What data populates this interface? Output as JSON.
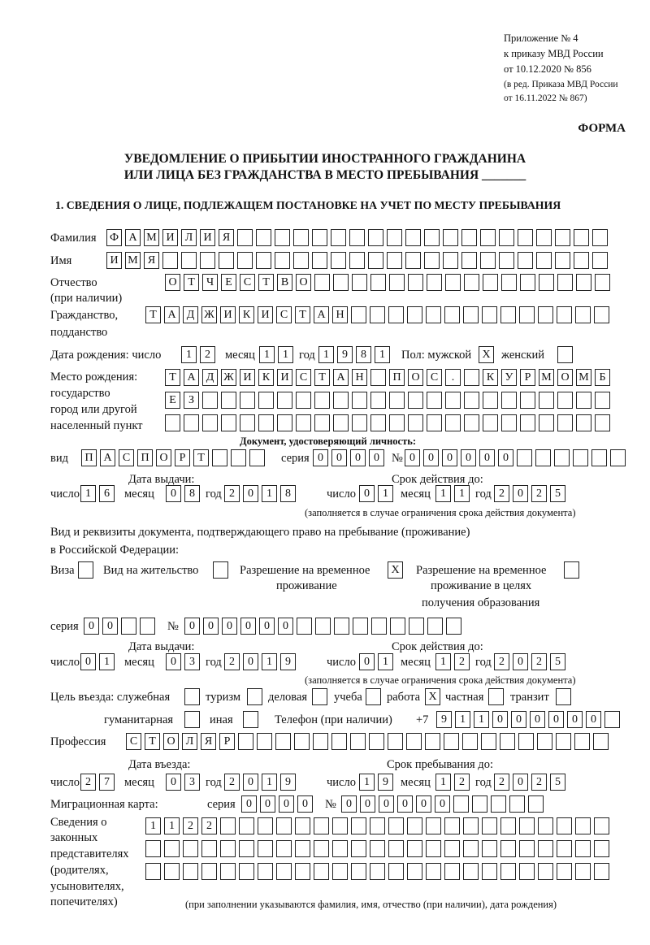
{
  "header": {
    "line1": "Приложение № 4",
    "line2": "к приказу МВД России",
    "line3": "от 10.12.2020 № 856",
    "line4": "(в ред. Приказа МВД России",
    "line5": "от 16.11.2022 № 867)",
    "forma": "ФОРМА",
    "title1": "УВЕДОМЛЕНИЕ О ПРИБЫТИИ ИНОСТРАННОГО ГРАЖДАНИНА",
    "title2": "ИЛИ ЛИЦА БЕЗ ГРАЖДАНСТВА В МЕСТО ПРЕБЫВАНИЯ _______",
    "section1": "1. СВЕДЕНИЯ О ЛИЦЕ, ПОДЛЕЖАЩЕМ ПОСТАНОВКЕ НА УЧЕТ ПО МЕСТУ ПРЕБЫВАНИЯ"
  },
  "labels": {
    "surname": "Фамилия",
    "name": "Имя",
    "patronymic1": "Отчество",
    "patronymic2": "(при наличии)",
    "citizenship1": "Гражданство,",
    "citizenship2": "подданство",
    "birth_date": "Дата рождения:  число",
    "month": "месяц",
    "year": "год",
    "day": "число",
    "sex": "Пол: мужской",
    "female": "женский",
    "birthplace1": "Место рождения:",
    "birthplace2": "государство",
    "birthplace3": "город или другой",
    "birthplace4": "населенный пункт",
    "id_doc": "Документ, удостоверяющий личность:",
    "kind": "вид",
    "series": "серия",
    "number": "№",
    "issue_date": "Дата выдачи:",
    "valid_until": "Срок действия до:",
    "validity_note": "(заполняется в случае ограничения срока действия документа)",
    "right_doc1": "Вид и реквизиты документа, подтверждающего право на пребывание (проживание)",
    "right_doc2": "в Российской Федерации:",
    "visa": "Виза",
    "residence": "Вид на жительство",
    "trp1": "Разрешение на временное",
    "trp2": "проживание",
    "trpe1": "Разрешение на временное",
    "trpe2": "проживание в целях",
    "trpe3": "получения образования",
    "purpose": "Цель въезда: служебная",
    "tourism": "туризм",
    "business": "деловая",
    "study": "учеба",
    "work": "работа",
    "private": "частная",
    "transit": "транзит",
    "humanitarian": "гуманитарная",
    "other": "иная",
    "phone": "Телефон (при наличии)",
    "phone_prefix": "+7",
    "profession": "Профессия",
    "entry_date": "Дата въезда:",
    "stay_until": "Срок пребывания до:",
    "migration_card": "Миграционная карта:",
    "reps1": "Сведения о",
    "reps2": "законных",
    "reps3": "представителях",
    "reps4": "(родителях,",
    "reps5": "усыновителях,",
    "reps6": "попечителях)",
    "reps_note": "(при заполнении указываются фамилия, имя, отчество (при наличии), дата рождения)"
  },
  "person": {
    "surname": "ФАМИЛИЯ",
    "name": "ИМЯ",
    "patronymic": "ОТЧЕСТВО",
    "citizenship": "ТАДЖИКИСТАН",
    "birth_day": "12",
    "birth_month": "11",
    "birth_year": "1981",
    "male": "X",
    "female": "",
    "birthplace_row1": "ТАДЖИКИСТАН ПОС. КУРМОМБ",
    "birthplace_row2": "ЕЗ",
    "birthplace_row3": ""
  },
  "id_document": {
    "kind": "ПАСПОРТ",
    "series": "0000",
    "number": "000000",
    "issue_day": "16",
    "issue_month": "08",
    "issue_year": "2018",
    "valid_day": "01",
    "valid_month": "11",
    "valid_year": "2025"
  },
  "right_document": {
    "visa": "",
    "residence": "",
    "trp": "X",
    "trp_edu": "",
    "series": "00",
    "number": "000000",
    "issue_day": "01",
    "issue_month": "03",
    "issue_year": "2019",
    "valid_day": "01",
    "valid_month": "12",
    "valid_year": "2025"
  },
  "purpose": {
    "official": "",
    "tourism": "",
    "business": "",
    "study": "",
    "work": "X",
    "private": "",
    "transit": "",
    "humanitarian": "",
    "other": ""
  },
  "phone": "911000000",
  "profession": "СТОЛЯР",
  "entry": {
    "day": "27",
    "month": "03",
    "year": "2019",
    "stay_day": "19",
    "stay_month": "12",
    "stay_year": "2025"
  },
  "migration_card": {
    "series": "0000",
    "number": "000000"
  },
  "representatives": {
    "row1": "1122",
    "row2": "",
    "row3": ""
  }
}
